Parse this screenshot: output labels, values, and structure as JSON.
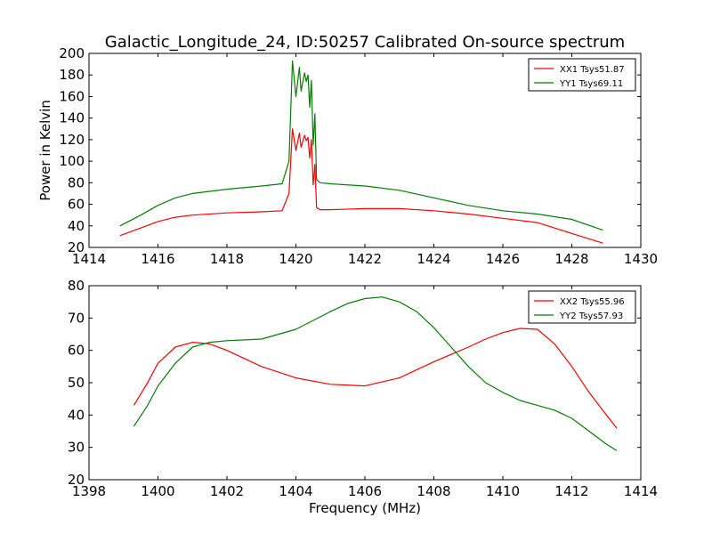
{
  "figure": {
    "title": "Galactic_Longitude_24, ID:50257 Calibrated On-source spectrum"
  },
  "chart_data": [
    {
      "type": "line",
      "title": "Galactic_Longitude_24, ID:50257 Calibrated On-source spectrum",
      "xlabel": "",
      "ylabel": "Power in Kelvin",
      "xlim": [
        1414,
        1430
      ],
      "ylim": [
        20,
        200
      ],
      "xticks": [
        1414,
        1416,
        1418,
        1420,
        1422,
        1424,
        1426,
        1428,
        1430
      ],
      "yticks": [
        20,
        40,
        60,
        80,
        100,
        120,
        140,
        160,
        180,
        200
      ],
      "legend": "top-right",
      "grid": false,
      "series": [
        {
          "name": "XX1 Tsys51.87",
          "color": "#ff0000",
          "x": [
            1414.9,
            1415.5,
            1416,
            1416.5,
            1417,
            1418,
            1419,
            1419.6,
            1419.8,
            1419.9,
            1420.0,
            1420.1,
            1420.15,
            1420.25,
            1420.3,
            1420.35,
            1420.4,
            1420.45,
            1420.5,
            1420.55,
            1420.6,
            1420.7,
            1421,
            1422,
            1423,
            1424,
            1425,
            1426,
            1427,
            1428,
            1428.9
          ],
          "y": [
            31,
            38,
            44,
            48,
            50,
            52,
            53,
            54,
            70,
            130,
            110,
            126,
            113,
            124,
            119,
            122,
            103,
            120,
            78,
            97,
            57,
            55,
            55,
            56,
            56,
            54,
            51,
            47,
            43,
            33,
            24
          ]
        },
        {
          "name": "YY1 Tsys69.11",
          "color": "#007f00",
          "x": [
            1414.9,
            1415.5,
            1416,
            1416.5,
            1417,
            1418,
            1419,
            1419.6,
            1419.8,
            1419.9,
            1420.0,
            1420.1,
            1420.15,
            1420.25,
            1420.3,
            1420.35,
            1420.4,
            1420.45,
            1420.5,
            1420.55,
            1420.6,
            1420.7,
            1421,
            1422,
            1423,
            1424,
            1425,
            1426,
            1427,
            1428,
            1428.9
          ],
          "y": [
            40,
            50,
            59,
            66,
            70,
            74,
            77,
            79,
            100,
            193,
            160,
            187,
            165,
            182,
            174,
            180,
            150,
            175,
            115,
            144,
            83,
            80,
            79,
            77,
            73,
            66,
            59,
            54,
            51,
            46,
            36
          ]
        }
      ]
    },
    {
      "type": "line",
      "title": "",
      "xlabel": "Frequency (MHz)",
      "ylabel": "",
      "xlim": [
        1398,
        1414
      ],
      "ylim": [
        20,
        80
      ],
      "xticks": [
        1398,
        1400,
        1402,
        1404,
        1406,
        1408,
        1410,
        1412,
        1414
      ],
      "yticks": [
        20,
        30,
        40,
        50,
        60,
        70,
        80
      ],
      "legend": "top-right",
      "grid": false,
      "series": [
        {
          "name": "XX2 Tsys55.96",
          "color": "#ff0000",
          "x": [
            1399.3,
            1399.7,
            1400,
            1400.5,
            1401,
            1401.5,
            1402,
            1403,
            1404,
            1405,
            1406,
            1407,
            1408,
            1409,
            1409.5,
            1410,
            1410.5,
            1411,
            1411.5,
            1412,
            1412.5,
            1413,
            1413.3
          ],
          "y": [
            43,
            50,
            56,
            61,
            62.5,
            62,
            60,
            55,
            51.5,
            49.5,
            49,
            51.5,
            56.5,
            61,
            63.5,
            65.5,
            66.8,
            66.5,
            62,
            55,
            47,
            40,
            36
          ]
        },
        {
          "name": "YY2 Tsys57.93",
          "color": "#007f00",
          "x": [
            1399.3,
            1399.7,
            1400,
            1400.5,
            1401,
            1401.5,
            1402,
            1403,
            1404,
            1405,
            1405.5,
            1406,
            1406.5,
            1407,
            1407.5,
            1408,
            1408.5,
            1409,
            1409.5,
            1410,
            1410.5,
            1411,
            1411.5,
            1412,
            1412.5,
            1413,
            1413.3
          ],
          "y": [
            36.5,
            43,
            49,
            56,
            61,
            62.5,
            63,
            63.5,
            66.5,
            72,
            74.5,
            76,
            76.5,
            75,
            72,
            67,
            61,
            55,
            50,
            47,
            44.5,
            43,
            41.5,
            39,
            35,
            31,
            29
          ]
        }
      ]
    }
  ]
}
